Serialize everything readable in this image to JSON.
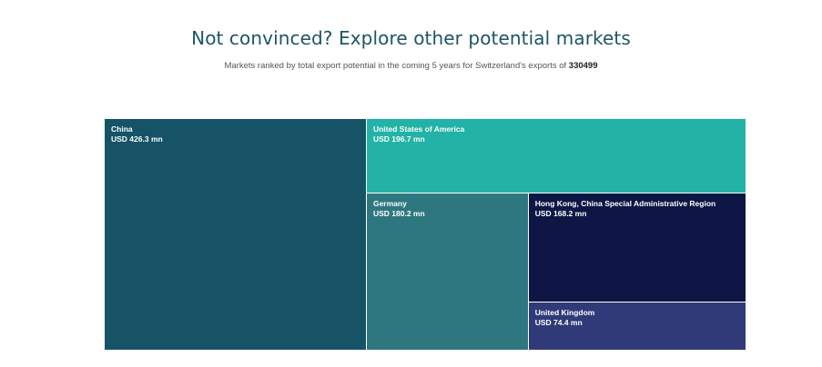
{
  "header": {
    "title": "Not convinced? Explore other potential markets",
    "subtitle_text": "Markets ranked by total export potential in the coming 5 years for Switzerland's exports of ",
    "subtitle_code": "330499"
  },
  "chart_data": {
    "type": "treemap",
    "unit": "USD mn",
    "items": [
      {
        "name": "China",
        "value": 426.3,
        "label": "USD 426.3 mn",
        "color": "#175367"
      },
      {
        "name": "United States of America",
        "value": 196.7,
        "label": "USD 196.7 mn",
        "color": "#22b3a6"
      },
      {
        "name": "Germany",
        "value": 180.2,
        "label": "USD 180.2 mn",
        "color": "#2e777f"
      },
      {
        "name": "Hong Kong, China Special Administrative Region",
        "value": 168.2,
        "label": "USD 168.2 mn",
        "color": "#0e1645"
      },
      {
        "name": "United Kingdom",
        "value": 74.4,
        "label": "USD 74.4 mn",
        "color": "#303a78"
      }
    ]
  }
}
